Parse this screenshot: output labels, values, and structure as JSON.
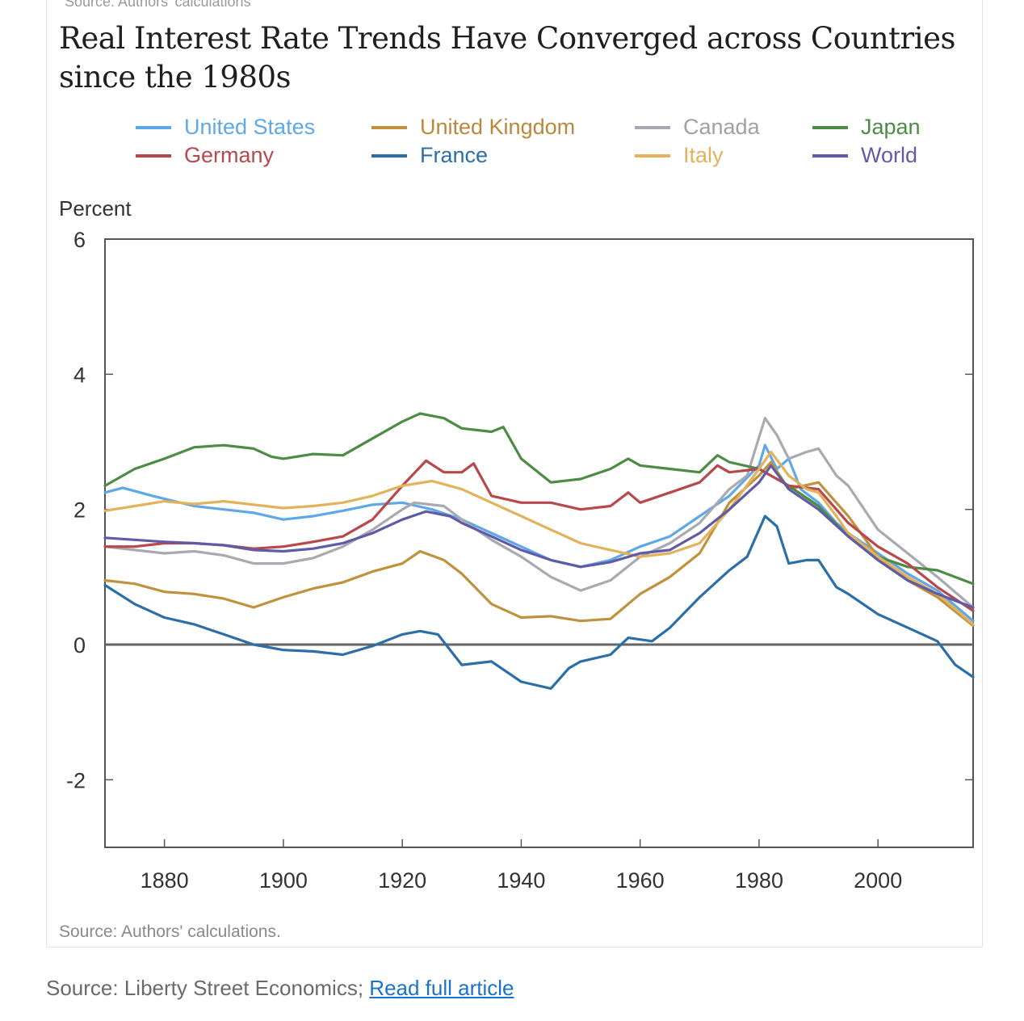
{
  "header": {
    "clipped_source": "Source: Authors' calculations",
    "title": "Real Interest Rate Trends Have Converged across Countries since the 1980s"
  },
  "chart_data": {
    "type": "line",
    "title": "Real Interest Rate Trends Have Converged across Countries since the 1980s",
    "ylabel": "Percent",
    "xlabel": "",
    "xlim": [
      1870,
      2016
    ],
    "ylim": [
      -3,
      6
    ],
    "x_ticks": [
      1880,
      1900,
      1920,
      1940,
      1960,
      1980,
      2000
    ],
    "y_ticks": [
      -2,
      0,
      2,
      4,
      6
    ],
    "zero_line": true,
    "grid": false,
    "legend_position": "top",
    "series": [
      {
        "name": "United States",
        "color": "#5fa8e8",
        "points": [
          [
            1870,
            2.25
          ],
          [
            1873,
            2.32
          ],
          [
            1878,
            2.2
          ],
          [
            1885,
            2.05
          ],
          [
            1890,
            2.0
          ],
          [
            1895,
            1.95
          ],
          [
            1900,
            1.85
          ],
          [
            1905,
            1.9
          ],
          [
            1910,
            1.98
          ],
          [
            1915,
            2.07
          ],
          [
            1920,
            2.1
          ],
          [
            1925,
            2.0
          ],
          [
            1930,
            1.85
          ],
          [
            1935,
            1.65
          ],
          [
            1940,
            1.45
          ],
          [
            1945,
            1.25
          ],
          [
            1950,
            1.15
          ],
          [
            1955,
            1.25
          ],
          [
            1960,
            1.45
          ],
          [
            1965,
            1.6
          ],
          [
            1970,
            1.9
          ],
          [
            1975,
            2.2
          ],
          [
            1980,
            2.65
          ],
          [
            1981,
            2.95
          ],
          [
            1983,
            2.6
          ],
          [
            1985,
            2.75
          ],
          [
            1987,
            2.3
          ],
          [
            1990,
            2.1
          ],
          [
            1993,
            1.8
          ],
          [
            1995,
            1.65
          ],
          [
            2000,
            1.35
          ],
          [
            2005,
            1.05
          ],
          [
            2010,
            0.8
          ],
          [
            2016,
            0.35
          ]
        ]
      },
      {
        "name": "United Kingdom",
        "color": "#c0913f",
        "points": [
          [
            1870,
            0.95
          ],
          [
            1875,
            0.9
          ],
          [
            1880,
            0.78
          ],
          [
            1885,
            0.75
          ],
          [
            1890,
            0.68
          ],
          [
            1895,
            0.55
          ],
          [
            1900,
            0.7
          ],
          [
            1905,
            0.83
          ],
          [
            1910,
            0.92
          ],
          [
            1915,
            1.08
          ],
          [
            1920,
            1.2
          ],
          [
            1923,
            1.38
          ],
          [
            1927,
            1.25
          ],
          [
            1930,
            1.05
          ],
          [
            1935,
            0.6
          ],
          [
            1940,
            0.4
          ],
          [
            1945,
            0.42
          ],
          [
            1950,
            0.35
          ],
          [
            1955,
            0.38
          ],
          [
            1960,
            0.75
          ],
          [
            1965,
            1.0
          ],
          [
            1970,
            1.35
          ],
          [
            1975,
            2.1
          ],
          [
            1980,
            2.5
          ],
          [
            1982,
            2.7
          ],
          [
            1985,
            2.3
          ],
          [
            1990,
            2.4
          ],
          [
            1995,
            1.9
          ],
          [
            2000,
            1.3
          ],
          [
            2005,
            0.95
          ],
          [
            2010,
            0.7
          ],
          [
            2016,
            0.28
          ]
        ]
      },
      {
        "name": "Canada",
        "color": "#a9a9b1",
        "points": [
          [
            1870,
            1.45
          ],
          [
            1875,
            1.4
          ],
          [
            1880,
            1.35
          ],
          [
            1885,
            1.38
          ],
          [
            1890,
            1.32
          ],
          [
            1895,
            1.2
          ],
          [
            1900,
            1.2
          ],
          [
            1905,
            1.28
          ],
          [
            1910,
            1.45
          ],
          [
            1915,
            1.7
          ],
          [
            1920,
            2.0
          ],
          [
            1922,
            2.1
          ],
          [
            1927,
            2.05
          ],
          [
            1930,
            1.85
          ],
          [
            1935,
            1.55
          ],
          [
            1940,
            1.3
          ],
          [
            1945,
            1.0
          ],
          [
            1950,
            0.8
          ],
          [
            1955,
            0.95
          ],
          [
            1960,
            1.3
          ],
          [
            1965,
            1.5
          ],
          [
            1970,
            1.8
          ],
          [
            1975,
            2.3
          ],
          [
            1978,
            2.5
          ],
          [
            1981,
            3.35
          ],
          [
            1983,
            3.1
          ],
          [
            1985,
            2.75
          ],
          [
            1988,
            2.85
          ],
          [
            1990,
            2.9
          ],
          [
            1993,
            2.5
          ],
          [
            1995,
            2.35
          ],
          [
            2000,
            1.7
          ],
          [
            2005,
            1.35
          ],
          [
            2010,
            1.0
          ],
          [
            2016,
            0.55
          ]
        ]
      },
      {
        "name": "Japan",
        "color": "#4d8c45",
        "points": [
          [
            1870,
            2.35
          ],
          [
            1875,
            2.6
          ],
          [
            1880,
            2.75
          ],
          [
            1885,
            2.92
          ],
          [
            1890,
            2.95
          ],
          [
            1895,
            2.9
          ],
          [
            1898,
            2.78
          ],
          [
            1900,
            2.75
          ],
          [
            1905,
            2.82
          ],
          [
            1910,
            2.8
          ],
          [
            1915,
            3.05
          ],
          [
            1920,
            3.3
          ],
          [
            1923,
            3.42
          ],
          [
            1927,
            3.35
          ],
          [
            1930,
            3.2
          ],
          [
            1935,
            3.15
          ],
          [
            1937,
            3.22
          ],
          [
            1940,
            2.75
          ],
          [
            1945,
            2.4
          ],
          [
            1950,
            2.45
          ],
          [
            1955,
            2.6
          ],
          [
            1958,
            2.75
          ],
          [
            1960,
            2.65
          ],
          [
            1965,
            2.6
          ],
          [
            1970,
            2.55
          ],
          [
            1973,
            2.8
          ],
          [
            1975,
            2.7
          ],
          [
            1980,
            2.6
          ],
          [
            1983,
            2.45
          ],
          [
            1985,
            2.35
          ],
          [
            1990,
            2.05
          ],
          [
            1995,
            1.6
          ],
          [
            2000,
            1.3
          ],
          [
            2005,
            1.15
          ],
          [
            2010,
            1.1
          ],
          [
            2016,
            0.9
          ]
        ]
      },
      {
        "name": "Germany",
        "color": "#b8484c",
        "points": [
          [
            1870,
            1.45
          ],
          [
            1875,
            1.45
          ],
          [
            1880,
            1.5
          ],
          [
            1885,
            1.5
          ],
          [
            1890,
            1.47
          ],
          [
            1895,
            1.42
          ],
          [
            1900,
            1.45
          ],
          [
            1905,
            1.52
          ],
          [
            1910,
            1.6
          ],
          [
            1915,
            1.85
          ],
          [
            1920,
            2.35
          ],
          [
            1924,
            2.72
          ],
          [
            1927,
            2.55
          ],
          [
            1930,
            2.55
          ],
          [
            1932,
            2.68
          ],
          [
            1935,
            2.2
          ],
          [
            1940,
            2.1
          ],
          [
            1945,
            2.1
          ],
          [
            1950,
            2.0
          ],
          [
            1955,
            2.05
          ],
          [
            1958,
            2.25
          ],
          [
            1960,
            2.1
          ],
          [
            1965,
            2.25
          ],
          [
            1970,
            2.4
          ],
          [
            1973,
            2.65
          ],
          [
            1975,
            2.55
          ],
          [
            1980,
            2.6
          ],
          [
            1983,
            2.45
          ],
          [
            1985,
            2.35
          ],
          [
            1990,
            2.3
          ],
          [
            1995,
            1.8
          ],
          [
            2000,
            1.45
          ],
          [
            2005,
            1.2
          ],
          [
            2010,
            0.85
          ],
          [
            2016,
            0.5
          ]
        ]
      },
      {
        "name": "France",
        "color": "#2c6fa8",
        "points": [
          [
            1870,
            0.88
          ],
          [
            1875,
            0.6
          ],
          [
            1880,
            0.4
          ],
          [
            1885,
            0.3
          ],
          [
            1890,
            0.15
          ],
          [
            1895,
            0.0
          ],
          [
            1900,
            -0.08
          ],
          [
            1905,
            -0.1
          ],
          [
            1910,
            -0.15
          ],
          [
            1915,
            -0.02
          ],
          [
            1920,
            0.15
          ],
          [
            1923,
            0.2
          ],
          [
            1926,
            0.15
          ],
          [
            1930,
            -0.3
          ],
          [
            1935,
            -0.25
          ],
          [
            1940,
            -0.55
          ],
          [
            1945,
            -0.65
          ],
          [
            1948,
            -0.35
          ],
          [
            1950,
            -0.25
          ],
          [
            1955,
            -0.15
          ],
          [
            1958,
            0.1
          ],
          [
            1962,
            0.05
          ],
          [
            1965,
            0.25
          ],
          [
            1970,
            0.7
          ],
          [
            1975,
            1.1
          ],
          [
            1978,
            1.3
          ],
          [
            1981,
            1.9
          ],
          [
            1983,
            1.75
          ],
          [
            1985,
            1.2
          ],
          [
            1988,
            1.25
          ],
          [
            1990,
            1.25
          ],
          [
            1993,
            0.85
          ],
          [
            1995,
            0.75
          ],
          [
            2000,
            0.45
          ],
          [
            2005,
            0.25
          ],
          [
            2010,
            0.05
          ],
          [
            2013,
            -0.3
          ],
          [
            2016,
            -0.48
          ]
        ]
      },
      {
        "name": "Italy",
        "color": "#e3b25a",
        "points": [
          [
            1870,
            1.98
          ],
          [
            1875,
            2.05
          ],
          [
            1880,
            2.12
          ],
          [
            1885,
            2.08
          ],
          [
            1890,
            2.12
          ],
          [
            1895,
            2.07
          ],
          [
            1900,
            2.02
          ],
          [
            1905,
            2.05
          ],
          [
            1910,
            2.1
          ],
          [
            1915,
            2.2
          ],
          [
            1920,
            2.35
          ],
          [
            1925,
            2.42
          ],
          [
            1930,
            2.3
          ],
          [
            1935,
            2.1
          ],
          [
            1940,
            1.9
          ],
          [
            1945,
            1.7
          ],
          [
            1950,
            1.5
          ],
          [
            1955,
            1.4
          ],
          [
            1960,
            1.3
          ],
          [
            1965,
            1.35
          ],
          [
            1970,
            1.5
          ],
          [
            1975,
            2.0
          ],
          [
            1980,
            2.6
          ],
          [
            1982,
            2.85
          ],
          [
            1985,
            2.5
          ],
          [
            1988,
            2.3
          ],
          [
            1990,
            2.25
          ],
          [
            1993,
            1.9
          ],
          [
            1995,
            1.65
          ],
          [
            2000,
            1.3
          ],
          [
            2005,
            1.0
          ],
          [
            2010,
            0.75
          ],
          [
            2016,
            0.3
          ]
        ]
      },
      {
        "name": "World",
        "color": "#5f5ba6",
        "points": [
          [
            1870,
            1.58
          ],
          [
            1875,
            1.55
          ],
          [
            1880,
            1.52
          ],
          [
            1885,
            1.5
          ],
          [
            1890,
            1.47
          ],
          [
            1895,
            1.4
          ],
          [
            1900,
            1.38
          ],
          [
            1905,
            1.42
          ],
          [
            1910,
            1.5
          ],
          [
            1915,
            1.65
          ],
          [
            1920,
            1.85
          ],
          [
            1924,
            1.97
          ],
          [
            1928,
            1.9
          ],
          [
            1930,
            1.8
          ],
          [
            1935,
            1.6
          ],
          [
            1940,
            1.4
          ],
          [
            1945,
            1.25
          ],
          [
            1950,
            1.15
          ],
          [
            1955,
            1.22
          ],
          [
            1960,
            1.35
          ],
          [
            1965,
            1.4
          ],
          [
            1970,
            1.65
          ],
          [
            1975,
            2.0
          ],
          [
            1980,
            2.4
          ],
          [
            1982,
            2.65
          ],
          [
            1985,
            2.3
          ],
          [
            1990,
            2.0
          ],
          [
            1995,
            1.6
          ],
          [
            2000,
            1.25
          ],
          [
            2005,
            0.95
          ],
          [
            2010,
            0.75
          ],
          [
            2016,
            0.55
          ]
        ]
      }
    ]
  },
  "legend": [
    {
      "label": "United States",
      "color": "#5fa8e8",
      "text_color": "#5fa8e8",
      "slug": "united-states"
    },
    {
      "label": "United Kingdom",
      "color": "#c0913f",
      "text_color": "#b8893a",
      "slug": "united-kingdom"
    },
    {
      "label": "Canada",
      "color": "#a9a9b1",
      "text_color": "#a0a0a8",
      "slug": "canada"
    },
    {
      "label": "Japan",
      "color": "#4d8c45",
      "text_color": "#4d8c45",
      "slug": "japan"
    },
    {
      "label": "Germany",
      "color": "#b8484c",
      "text_color": "#b8484c",
      "slug": "germany"
    },
    {
      "label": "France",
      "color": "#2c6fa8",
      "text_color": "#2c6fa8",
      "slug": "france"
    },
    {
      "label": "Italy",
      "color": "#e3b25a",
      "text_color": "#e3b25a",
      "slug": "italy"
    },
    {
      "label": "World",
      "color": "#5f5ba6",
      "text_color": "#5f5ba6",
      "slug": "world"
    }
  ],
  "chart_source": "Source: Authors' calculations.",
  "footer": {
    "source_text": "Source: Liberty Street Economics; ",
    "link_text": "Read full article"
  }
}
